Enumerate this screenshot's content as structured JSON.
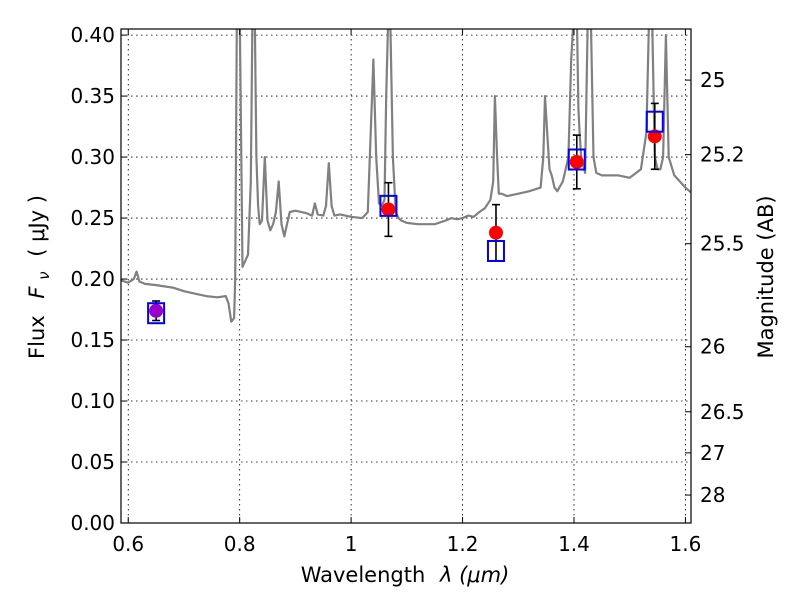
{
  "chart_data": {
    "type": "line",
    "title": "",
    "xlabel": "Wavelength",
    "xlabel_math": "λ (μm)",
    "ylabel": "Flux",
    "ylabel_math": "F",
    "ylabel_math_sub": "ν",
    "ylabel_unit": "( μJy )",
    "y2label": "Magnitude (AB)",
    "xlim": [
      0.587,
      1.61
    ],
    "ylim": [
      0.0,
      0.405
    ],
    "grid": true,
    "x_ticks": [
      0.6,
      0.8,
      1.0,
      1.2,
      1.4,
      1.6
    ],
    "x_tick_labels": [
      "0.6",
      "0.8",
      "1",
      "1.2",
      "1.4",
      "1.6"
    ],
    "y_ticks": [
      0.0,
      0.05,
      0.1,
      0.15,
      0.2,
      0.25,
      0.3,
      0.35,
      0.4
    ],
    "y_tick_labels": [
      "0.00",
      "0.05",
      "0.10",
      "0.15",
      "0.20",
      "0.25",
      "0.30",
      "0.35",
      "0.40"
    ],
    "y2_ticks": [
      {
        "label": "25",
        "flux": 0.3631
      },
      {
        "label": "25.2",
        "flux": 0.302
      },
      {
        "label": "25.5",
        "flux": 0.229
      },
      {
        "label": "26",
        "flux": 0.1445
      },
      {
        "label": "26.5",
        "flux": 0.0912
      },
      {
        "label": "27",
        "flux": 0.0575
      },
      {
        "label": "28",
        "flux": 0.0229
      }
    ],
    "series": [
      {
        "kind": "spectrum",
        "color": "#808080",
        "x": [
          0.587,
          0.6,
          0.61,
          0.615,
          0.62,
          0.63,
          0.65,
          0.68,
          0.7,
          0.72,
          0.74,
          0.76,
          0.775,
          0.78,
          0.785,
          0.79,
          0.792,
          0.795,
          0.8,
          0.805,
          0.81,
          0.815,
          0.82,
          0.823,
          0.827,
          0.83,
          0.833,
          0.836,
          0.84,
          0.845,
          0.85,
          0.855,
          0.86,
          0.865,
          0.87,
          0.875,
          0.88,
          0.885,
          0.89,
          0.9,
          0.92,
          0.93,
          0.935,
          0.94,
          0.95,
          0.955,
          0.96,
          0.965,
          0.97,
          0.98,
          1.0,
          1.02,
          1.03,
          1.04,
          1.045,
          1.05,
          1.055,
          1.06,
          1.063,
          1.067,
          1.07,
          1.075,
          1.08,
          1.085,
          1.09,
          1.1,
          1.12,
          1.15,
          1.17,
          1.18,
          1.19,
          1.2,
          1.21,
          1.22,
          1.23,
          1.24,
          1.25,
          1.255,
          1.258,
          1.262,
          1.265,
          1.27,
          1.28,
          1.3,
          1.32,
          1.34,
          1.345,
          1.348,
          1.352,
          1.356,
          1.36,
          1.365,
          1.37,
          1.38,
          1.39,
          1.395,
          1.4,
          1.403,
          1.405,
          1.408,
          1.41,
          1.413,
          1.42,
          1.425,
          1.43,
          1.435,
          1.44,
          1.45,
          1.46,
          1.48,
          1.5,
          1.52,
          1.53,
          1.535,
          1.54,
          1.545,
          1.55,
          1.555,
          1.56,
          1.565,
          1.57,
          1.58,
          1.59,
          1.6,
          1.61
        ],
        "y": [
          0.199,
          0.197,
          0.2,
          0.206,
          0.198,
          0.196,
          0.195,
          0.193,
          0.19,
          0.188,
          0.186,
          0.185,
          0.186,
          0.18,
          0.165,
          0.168,
          0.2,
          0.42,
          0.42,
          0.21,
          0.215,
          0.22,
          0.28,
          0.42,
          0.42,
          0.3,
          0.26,
          0.245,
          0.248,
          0.3,
          0.248,
          0.24,
          0.245,
          0.255,
          0.28,
          0.245,
          0.235,
          0.245,
          0.255,
          0.256,
          0.254,
          0.252,
          0.262,
          0.253,
          0.252,
          0.26,
          0.295,
          0.26,
          0.252,
          0.253,
          0.251,
          0.25,
          0.255,
          0.38,
          0.3,
          0.262,
          0.26,
          0.265,
          0.35,
          0.42,
          0.42,
          0.3,
          0.255,
          0.25,
          0.248,
          0.246,
          0.245,
          0.245,
          0.248,
          0.25,
          0.249,
          0.25,
          0.252,
          0.251,
          0.255,
          0.258,
          0.265,
          0.28,
          0.35,
          0.3,
          0.27,
          0.27,
          0.268,
          0.27,
          0.272,
          0.275,
          0.3,
          0.35,
          0.32,
          0.29,
          0.285,
          0.275,
          0.272,
          0.28,
          0.3,
          0.38,
          0.42,
          0.42,
          0.42,
          0.34,
          0.32,
          0.3,
          0.287,
          0.42,
          0.42,
          0.3,
          0.287,
          0.285,
          0.285,
          0.285,
          0.283,
          0.29,
          0.32,
          0.42,
          0.42,
          0.3,
          0.29,
          0.29,
          0.3,
          0.4,
          0.3,
          0.285,
          0.28,
          0.275,
          0.271
        ]
      },
      {
        "kind": "photometry",
        "marker": "circle",
        "color": "#ff0000",
        "x": [
          1.067,
          1.26,
          1.405,
          1.545
        ],
        "y": [
          0.257,
          0.238,
          0.296,
          0.317
        ],
        "yerr": [
          0.022,
          0.023,
          0.022,
          0.027
        ]
      },
      {
        "kind": "photometry",
        "marker": "circle",
        "color": "#9900cc",
        "x": [
          0.65
        ],
        "y": [
          0.174
        ],
        "yerr": [
          0.008
        ]
      },
      {
        "kind": "model-photometry",
        "marker": "square",
        "color": "#0000ff",
        "x": [
          0.65,
          1.067,
          1.26,
          1.405,
          1.545
        ],
        "y": [
          0.172,
          0.26,
          0.223,
          0.298,
          0.329
        ]
      }
    ]
  }
}
